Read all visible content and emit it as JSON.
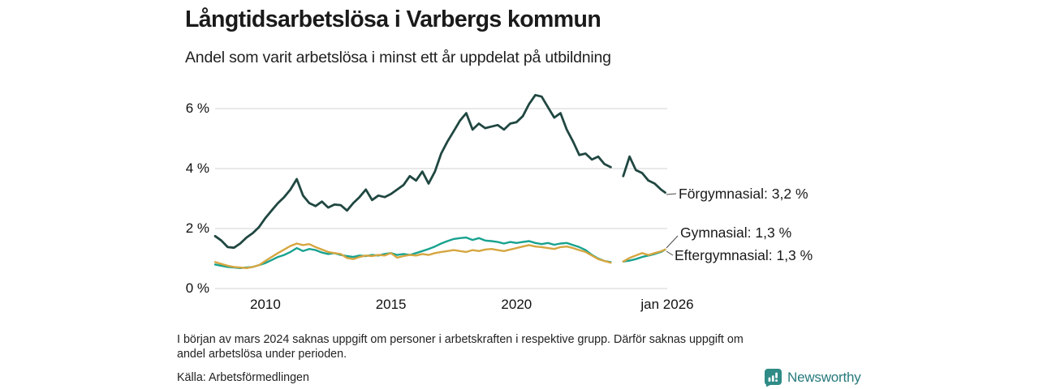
{
  "header": {
    "title": "Långtidsarbetslösa i Varbergs kommun",
    "subtitle": "Andel som varit arbetslösa i minst ett år uppdelat på utbildning"
  },
  "chart_data": {
    "type": "line",
    "title": "Långtidsarbetslösa i Varbergs kommun",
    "subtitle": "Andel som varit arbetslösa i minst ett år uppdelat på utbildning",
    "xlabel": "",
    "ylabel": "",
    "xlim": [
      2008,
      2026
    ],
    "ylim": [
      0,
      6.6
    ],
    "grid": "horizontal",
    "legend_position": "right-end-labels",
    "gap_note": "values missing around March 2024 (shown as line break)",
    "y_ticks": [
      {
        "value": 0,
        "label": "0 %"
      },
      {
        "value": 2,
        "label": "2 %"
      },
      {
        "value": 4,
        "label": "4 %"
      },
      {
        "value": 6,
        "label": "6 %"
      }
    ],
    "x_ticks": [
      {
        "value": 2010,
        "label": "2010"
      },
      {
        "value": 2015,
        "label": "2015"
      },
      {
        "value": 2020,
        "label": "2020"
      },
      {
        "value": 2026,
        "label": "jan 2026"
      }
    ],
    "x": [
      2008.0,
      2008.25,
      2008.5,
      2008.75,
      2009.0,
      2009.25,
      2009.5,
      2009.75,
      2010.0,
      2010.25,
      2010.5,
      2010.75,
      2011.0,
      2011.25,
      2011.5,
      2011.75,
      2012.0,
      2012.25,
      2012.5,
      2012.75,
      2013.0,
      2013.25,
      2013.5,
      2013.75,
      2014.0,
      2014.25,
      2014.5,
      2014.75,
      2015.0,
      2015.25,
      2015.5,
      2015.75,
      2016.0,
      2016.25,
      2016.5,
      2016.75,
      2017.0,
      2017.25,
      2017.5,
      2017.75,
      2018.0,
      2018.25,
      2018.5,
      2018.75,
      2019.0,
      2019.25,
      2019.5,
      2019.75,
      2020.0,
      2020.25,
      2020.5,
      2020.75,
      2021.0,
      2021.25,
      2021.5,
      2021.75,
      2022.0,
      2022.25,
      2022.5,
      2022.75,
      2023.0,
      2023.25,
      2023.5,
      2023.75,
      2024.0,
      2024.25,
      2024.5,
      2024.75,
      2025.0,
      2025.25,
      2025.5,
      2025.75,
      2025.92
    ],
    "series": [
      {
        "name": "Förgymnasial",
        "color": "#204741",
        "end_value": "3,2 %",
        "end_label": "Förgymnasial: 3,2 %",
        "values": [
          1.75,
          1.6,
          1.38,
          1.36,
          1.5,
          1.7,
          1.85,
          2.05,
          2.35,
          2.6,
          2.85,
          3.05,
          3.3,
          3.65,
          3.1,
          2.85,
          2.75,
          2.9,
          2.7,
          2.8,
          2.78,
          2.6,
          2.85,
          3.05,
          3.3,
          2.95,
          3.1,
          3.05,
          3.15,
          3.3,
          3.45,
          3.75,
          3.6,
          3.9,
          3.5,
          3.9,
          4.5,
          4.9,
          5.25,
          5.6,
          5.85,
          5.3,
          5.5,
          5.35,
          5.4,
          5.45,
          5.3,
          5.5,
          5.55,
          5.75,
          6.15,
          6.45,
          6.4,
          6.05,
          5.7,
          5.85,
          5.3,
          4.9,
          4.45,
          4.5,
          4.3,
          4.4,
          4.15,
          4.05,
          null,
          3.75,
          4.4,
          3.95,
          3.85,
          3.6,
          3.5,
          3.3,
          3.2
        ]
      },
      {
        "name": "Gymnasial",
        "color": "#18a28f",
        "end_value": "1,3 %",
        "end_label": "Gymnasial: 1,3 %",
        "values": [
          0.8,
          0.76,
          0.72,
          0.7,
          0.68,
          0.7,
          0.72,
          0.78,
          0.85,
          0.95,
          1.05,
          1.12,
          1.22,
          1.35,
          1.25,
          1.32,
          1.28,
          1.2,
          1.15,
          1.18,
          1.12,
          1.08,
          1.05,
          1.1,
          1.08,
          1.12,
          1.1,
          1.15,
          1.18,
          1.12,
          1.15,
          1.12,
          1.18,
          1.25,
          1.32,
          1.4,
          1.5,
          1.58,
          1.65,
          1.68,
          1.7,
          1.62,
          1.68,
          1.6,
          1.58,
          1.55,
          1.5,
          1.55,
          1.52,
          1.55,
          1.58,
          1.52,
          1.48,
          1.52,
          1.46,
          1.5,
          1.52,
          1.45,
          1.38,
          1.28,
          1.12,
          1.0,
          0.92,
          0.88,
          null,
          0.9,
          0.93,
          0.98,
          1.05,
          1.1,
          1.15,
          1.22,
          1.3
        ]
      },
      {
        "name": "Eftergymnasial",
        "color": "#d6a640",
        "end_value": "1,3 %",
        "end_label": "Eftergymnasial: 1,3 %",
        "values": [
          0.88,
          0.82,
          0.76,
          0.72,
          0.7,
          0.68,
          0.72,
          0.78,
          0.92,
          1.05,
          1.18,
          1.3,
          1.42,
          1.5,
          1.45,
          1.48,
          1.38,
          1.3,
          1.22,
          1.18,
          1.15,
          1.02,
          0.98,
          1.05,
          1.1,
          1.08,
          1.12,
          1.1,
          1.18,
          1.03,
          1.08,
          1.12,
          1.1,
          1.15,
          1.12,
          1.18,
          1.22,
          1.25,
          1.28,
          1.25,
          1.22,
          1.28,
          1.25,
          1.3,
          1.32,
          1.28,
          1.25,
          1.3,
          1.35,
          1.4,
          1.45,
          1.4,
          1.38,
          1.35,
          1.32,
          1.38,
          1.4,
          1.35,
          1.28,
          1.22,
          1.1,
          0.98,
          0.92,
          0.86,
          null,
          0.9,
          1.02,
          1.1,
          1.18,
          1.12,
          1.18,
          1.24,
          1.3
        ]
      }
    ],
    "colors": {
      "gridline": "#e2e2e2",
      "leader_line": "#4a4a4a"
    }
  },
  "footer": {
    "note_lines": [
      "I början av mars 2024 saknas uppgift om personer i arbetskraften i respektive grupp. Därför saknas uppgift om",
      "andel arbetslösa under perioden."
    ],
    "source": "Källa: Arbetsförmedlingen",
    "brand": "Newsworthy",
    "brand_color": "#26797c",
    "brand_icon": "bar-chart-bubble-icon",
    "brand_icon_color": "#2f8b86"
  }
}
